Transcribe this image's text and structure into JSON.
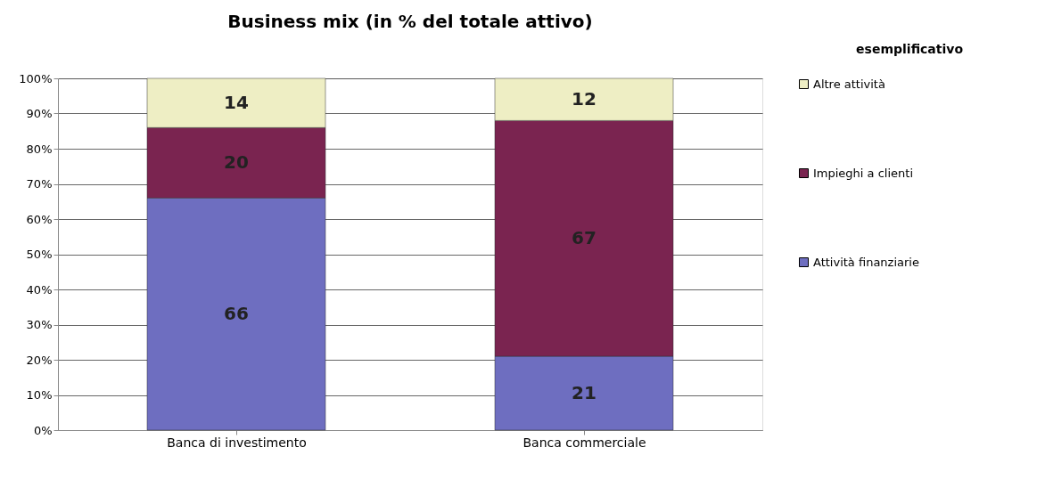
{
  "chart_data": {
    "type": "bar",
    "title": "Business mix (in % del totale attivo)",
    "annotations": [
      "esemplificativo"
    ],
    "categories": [
      "Banca di investimento",
      "Banca commerciale"
    ],
    "stacked": true,
    "data_labels": true,
    "legend": "right",
    "grid": "y",
    "ylim": [
      0,
      100
    ],
    "yticks": [
      {
        "value": 0,
        "label": "0%"
      },
      {
        "value": 10,
        "label": "10%"
      },
      {
        "value": 20,
        "label": "20%"
      },
      {
        "value": 30,
        "label": "30%"
      },
      {
        "value": 40,
        "label": "40%"
      },
      {
        "value": 50,
        "label": "50%"
      },
      {
        "value": 60,
        "label": "60%"
      },
      {
        "value": 70,
        "label": "70%"
      },
      {
        "value": 80,
        "label": "80%"
      },
      {
        "value": 90,
        "label": "90%"
      },
      {
        "value": 100,
        "label": "100%"
      }
    ],
    "series": [
      {
        "name": "Attività finanziarie",
        "color": "#6e6ec0",
        "values": [
          66,
          21
        ]
      },
      {
        "name": "Impieghi a clienti",
        "color": "#7a2450",
        "values": [
          20,
          67
        ]
      },
      {
        "name": "Altre attività",
        "color": "#eeeec4",
        "values": [
          14,
          12
        ]
      }
    ]
  }
}
